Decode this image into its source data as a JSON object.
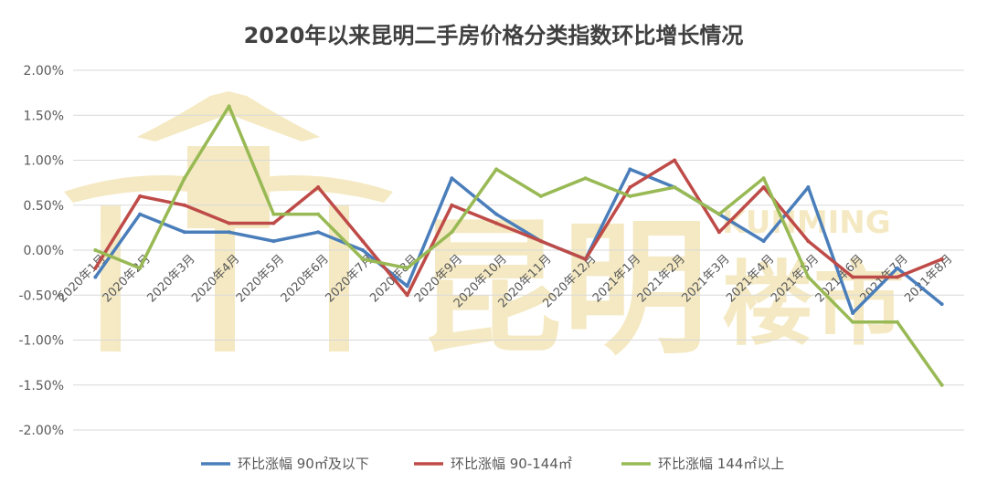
{
  "chart_data": {
    "type": "line",
    "title": "2020年以来昆明二手房价格分类指数环比增长情况",
    "xlabel": "",
    "ylabel": "",
    "ylim": [
      -0.02,
      0.02
    ],
    "yticks": [
      "2.00%",
      "1.50%",
      "1.00%",
      "0.50%",
      "0.00%",
      "-0.50%",
      "-1.00%",
      "-1.50%",
      "-2.00%"
    ],
    "grid": true,
    "legend_position": "bottom",
    "categories": [
      "2020年1月",
      "2020年2月",
      "2020年3月",
      "2020年4月",
      "2020年5月",
      "2020年6月",
      "2020年7月",
      "2020年8月",
      "2020年9月",
      "2020年10月",
      "2020年11月",
      "2020年12月",
      "2021年1月",
      "2021年2月",
      "2021年3月",
      "2021年4月",
      "2021年5月",
      "2021年6月",
      "2021年7月",
      "2021年8月"
    ],
    "series": [
      {
        "name": "环比涨幅 90㎡及以下",
        "color": "#4a7ebb",
        "values": [
          -0.003,
          0.004,
          0.002,
          0.002,
          0.001,
          0.002,
          0.0,
          -0.004,
          0.008,
          0.004,
          0.001,
          -0.001,
          0.009,
          0.007,
          0.004,
          0.001,
          0.007,
          -0.007,
          -0.002,
          -0.006
        ]
      },
      {
        "name": "环比涨幅 90-144㎡",
        "color": "#be4b48",
        "values": [
          -0.002,
          0.006,
          0.005,
          0.003,
          0.003,
          0.007,
          0.001,
          -0.005,
          0.005,
          0.003,
          0.001,
          -0.001,
          0.007,
          0.01,
          0.002,
          0.007,
          0.001,
          -0.003,
          -0.003,
          -0.001
        ]
      },
      {
        "name": "环比涨幅 144㎡以上",
        "color": "#98b954",
        "values": [
          0.0,
          -0.002,
          0.008,
          0.016,
          0.004,
          0.004,
          -0.001,
          -0.002,
          0.002,
          0.009,
          0.006,
          0.008,
          0.006,
          0.007,
          0.004,
          0.008,
          -0.003,
          -0.008,
          -0.008,
          -0.015
        ]
      }
    ]
  },
  "watermark": {
    "text_cn": "昆明",
    "text_en": "KUNMING",
    "text_sub": "楼市",
    "color": "#f3e6b8"
  }
}
